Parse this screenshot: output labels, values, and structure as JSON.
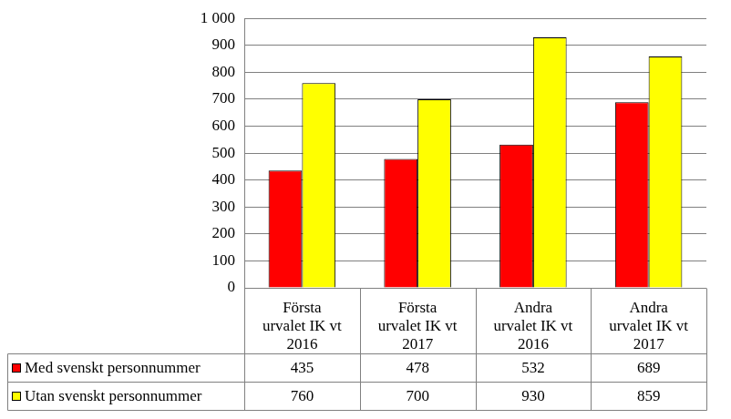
{
  "chart_data": {
    "type": "bar",
    "categories": [
      "Första urvalet IK vt 2016",
      "Första urvalet IK vt 2017",
      "Andra urvalet IK vt 2016",
      "Andra urvalet IK vt 2017"
    ],
    "series": [
      {
        "name": "Med svenskt personnummer",
        "color": "#ff0000",
        "values": [
          435,
          478,
          532,
          689
        ]
      },
      {
        "name": "Utan svenskt personnummer",
        "color": "#ffff00",
        "values": [
          760,
          700,
          930,
          859
        ]
      }
    ],
    "ylim": [
      0,
      1000
    ],
    "yticks": [
      0,
      100,
      200,
      300,
      400,
      500,
      600,
      700,
      800,
      900,
      {
        "value": 1000,
        "label": "1 000"
      }
    ],
    "grid": true,
    "legend": "bottom"
  }
}
